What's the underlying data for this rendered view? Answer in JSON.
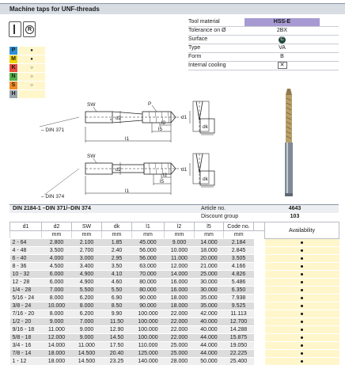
{
  "title": "Machine taps for UNF-threads",
  "materials": [
    {
      "code": "P",
      "color": "#2f8fd6",
      "value": "●"
    },
    {
      "code": "M",
      "color": "#f2d400",
      "value": "●"
    },
    {
      "code": "K",
      "color": "#e84b3a",
      "value": "○"
    },
    {
      "code": "N",
      "color": "#55b04a",
      "value": "○"
    },
    {
      "code": "S",
      "color": "#f08a24",
      "value": "○"
    },
    {
      "code": "H",
      "color": "#9aa3ab",
      "value": ""
    }
  ],
  "properties": [
    {
      "label": "Tool material",
      "value": "HSS-E",
      "highlight": true
    },
    {
      "label": "Tolerance on Ø",
      "value": "2BX"
    },
    {
      "label": "Surface",
      "value": "C"
    },
    {
      "label": "Type",
      "value": "VA"
    },
    {
      "label": "Form",
      "value": "B"
    },
    {
      "label": "Internal cooling",
      "value": "✕"
    }
  ],
  "drawing": {
    "din371": "– DIN 371",
    "din374": "– DIN 374",
    "labels": {
      "sw": "SW",
      "d2": "d2",
      "p": "P",
      "l2": "l2",
      "l5": "l5",
      "l1": "l1",
      "d1": "d1",
      "dk": "dk"
    }
  },
  "header": {
    "norm": "DIN 2184-1 –DIN 371/–DIN 374",
    "article_label": "Article no.",
    "article_value": "4643",
    "discount_label": "Discount group",
    "discount_value": "103"
  },
  "table": {
    "columns": [
      "d1",
      "d2",
      "SW",
      "dk",
      "l1",
      "l2",
      "l5",
      "Code no."
    ],
    "units": [
      "",
      "mm",
      "mm",
      "mm",
      "mm",
      "mm",
      "mm",
      "mm"
    ],
    "availability_label": "Availability",
    "rows": [
      [
        "2 - 64",
        "2.800",
        "2.100",
        "1.85",
        "45.000",
        "9.000",
        "14.000",
        "2.184"
      ],
      [
        "4 - 48",
        "3.500",
        "2.700",
        "2.40",
        "56.000",
        "10.000",
        "18.000",
        "2.845"
      ],
      [
        "6 - 40",
        "4.000",
        "3.000",
        "2.95",
        "56.000",
        "11.000",
        "20.000",
        "3.505"
      ],
      [
        "8 - 36",
        "4.500",
        "3.400",
        "3.50",
        "63.000",
        "12.000",
        "21.000",
        "4.166"
      ],
      [
        "10 - 32",
        "6.000",
        "4.900",
        "4.10",
        "70.000",
        "14.000",
        "25.000",
        "4.826"
      ],
      [
        "12 - 28",
        "6.000",
        "4.900",
        "4.60",
        "80.000",
        "16.000",
        "30.000",
        "5.486"
      ],
      [
        "1/4 - 28",
        "7.000",
        "5.500",
        "5.50",
        "80.000",
        "16.000",
        "30.000",
        "6.350"
      ],
      [
        "5/16 - 24",
        "8.000",
        "6.200",
        "6.90",
        "90.000",
        "18.000",
        "35.000",
        "7.938"
      ],
      [
        "3/8 - 24",
        "10.000",
        "8.000",
        "8.50",
        "90.000",
        "18.000",
        "35.000",
        "9.525"
      ],
      [
        "7/16 - 20",
        "8.000",
        "6.200",
        "9.90",
        "100.000",
        "22.000",
        "42.000",
        "11.113"
      ],
      [
        "1/2 - 20",
        "9.000",
        "7.000",
        "11.50",
        "100.000",
        "22.000",
        "40.000",
        "12.700"
      ],
      [
        "9/16 - 18",
        "11.000",
        "9.000",
        "12.90",
        "100.000",
        "22.000",
        "40.000",
        "14.288"
      ],
      [
        "5/8 - 18",
        "12.000",
        "9.000",
        "14.50",
        "100.000",
        "22.000",
        "44.000",
        "15.875"
      ],
      [
        "3/4 - 16",
        "14.000",
        "11.000",
        "17.50",
        "110.000",
        "25.000",
        "44.000",
        "19.050"
      ],
      [
        "7/8 - 14",
        "18.000",
        "14.500",
        "20.40",
        "125.000",
        "25.000",
        "44.000",
        "22.225"
      ],
      [
        "1 - 12",
        "18.000",
        "14.500",
        "23.25",
        "140.000",
        "28.000",
        "50.000",
        "25.400"
      ]
    ]
  }
}
